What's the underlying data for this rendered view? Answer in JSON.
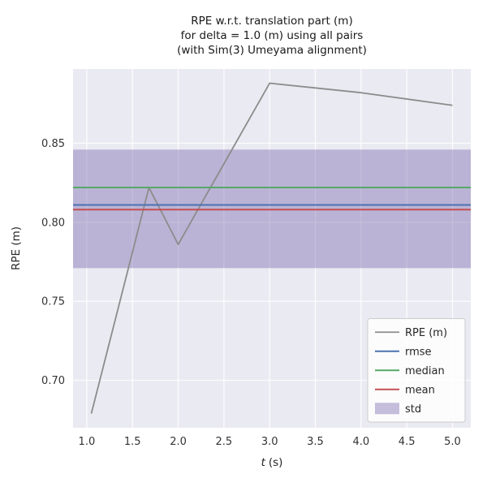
{
  "figure": {
    "title_lines": [
      "RPE w.r.t. translation part (m)",
      "for delta = 1.0 (m) using all pairs",
      "(with Sim(3) Umeyama alignment)"
    ],
    "xlabel_var": "t",
    "xlabel_unit": "(s)",
    "ylabel": "RPE (m)"
  },
  "chart_data": {
    "type": "line",
    "title": "RPE w.r.t. translation part (m) for delta = 1.0 (m) using all pairs (with Sim(3) Umeyama alignment)",
    "xlabel": "t (s)",
    "ylabel": "RPE (m)",
    "xlim": [
      0.85,
      5.2
    ],
    "ylim": [
      0.67,
      0.897
    ],
    "xticks": [
      1.0,
      1.5,
      2.0,
      2.5,
      3.0,
      3.5,
      4.0,
      4.5,
      5.0
    ],
    "xtick_labels": [
      "1.0",
      "1.5",
      "2.0",
      "2.5",
      "3.0",
      "3.5",
      "4.0",
      "4.5",
      "5.0"
    ],
    "yticks": [
      0.7,
      0.75,
      0.8,
      0.85
    ],
    "ytick_labels": [
      "0.70",
      "0.75",
      "0.80",
      "0.85"
    ],
    "grid": true,
    "legend_position": "lower right",
    "series": [
      {
        "name": "RPE (m)",
        "color": "#8c8c8c",
        "x": [
          1.05,
          1.68,
          2.0,
          3.0,
          4.0,
          5.0
        ],
        "y": [
          0.679,
          0.822,
          0.786,
          0.888,
          0.882,
          0.874
        ]
      }
    ],
    "stat_lines": [
      {
        "name": "rmse",
        "value": 0.811,
        "color": "#4c72b0"
      },
      {
        "name": "median",
        "value": 0.822,
        "color": "#55a868"
      },
      {
        "name": "mean",
        "value": 0.808,
        "color": "#c44e52"
      }
    ],
    "std_band": {
      "name": "std",
      "low": 0.771,
      "high": 0.846,
      "color": "#8172b2",
      "opacity": 0.45
    },
    "legend_entries": [
      "RPE (m)",
      "rmse",
      "median",
      "mean",
      "std"
    ]
  },
  "style": {
    "fig_bg": "#ffffff",
    "plot_bg": "#eaeaf2",
    "grid_color": "#ffffff",
    "legend_bg": "#ffffff",
    "legend_border": "#cccccc"
  }
}
